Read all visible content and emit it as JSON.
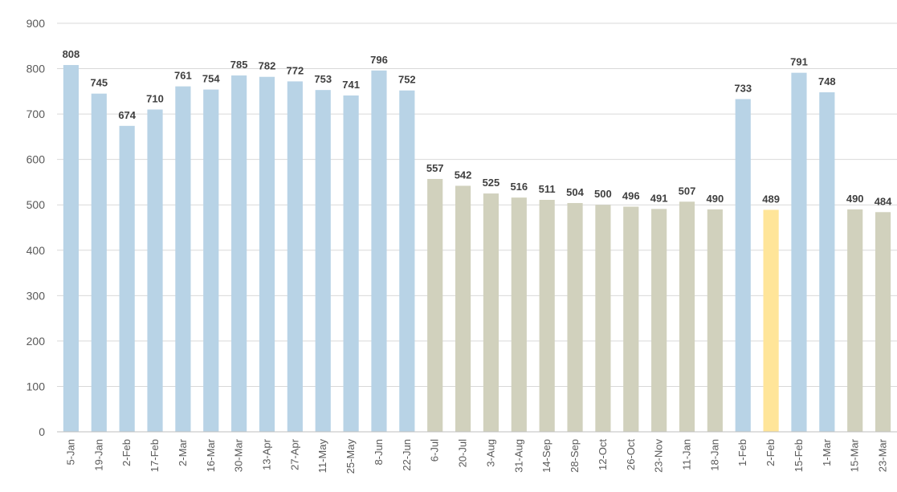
{
  "chart_data": {
    "type": "bar",
    "categories": [
      "5-Jan",
      "19-Jan",
      "2-Feb",
      "17-Feb",
      "2-Mar",
      "16-Mar",
      "30-Mar",
      "13-Apr",
      "27-Apr",
      "11-May",
      "25-May",
      "8-Jun",
      "22-Jun",
      "6-Jul",
      "20-Jul",
      "3-Aug",
      "31-Aug",
      "14-Sep",
      "28-Sep",
      "12-Oct",
      "26-Oct",
      "23-Nov",
      "11-Jan",
      "18-Jan",
      "1-Feb",
      "2-Feb",
      "15-Feb",
      "1-Mar",
      "15-Mar",
      "23-Mar"
    ],
    "values": [
      808,
      745,
      674,
      710,
      761,
      754,
      785,
      782,
      772,
      753,
      741,
      796,
      752,
      557,
      542,
      525,
      516,
      511,
      504,
      500,
      496,
      491,
      507,
      490,
      733,
      489,
      791,
      748,
      490,
      484
    ],
    "bar_colors": [
      "#b8d3e6",
      "#b8d3e6",
      "#b8d3e6",
      "#b8d3e6",
      "#b8d3e6",
      "#b8d3e6",
      "#b8d3e6",
      "#b8d3e6",
      "#b8d3e6",
      "#b8d3e6",
      "#b8d3e6",
      "#b8d3e6",
      "#b8d3e6",
      "#d1d1bd",
      "#d1d1bd",
      "#d1d1bd",
      "#d1d1bd",
      "#d1d1bd",
      "#d1d1bd",
      "#d1d1bd",
      "#d1d1bd",
      "#d1d1bd",
      "#d1d1bd",
      "#d1d1bd",
      "#b8d3e6",
      "#ffe599",
      "#b8d3e6",
      "#b8d3e6",
      "#d1d1bd",
      "#d1d1bd"
    ],
    "yticks": [
      0,
      100,
      200,
      300,
      400,
      500,
      600,
      700,
      800,
      900
    ],
    "ylim": [
      0,
      900
    ],
    "grid": true,
    "legend": "none",
    "title": "",
    "xlabel": "",
    "ylabel": ""
  }
}
